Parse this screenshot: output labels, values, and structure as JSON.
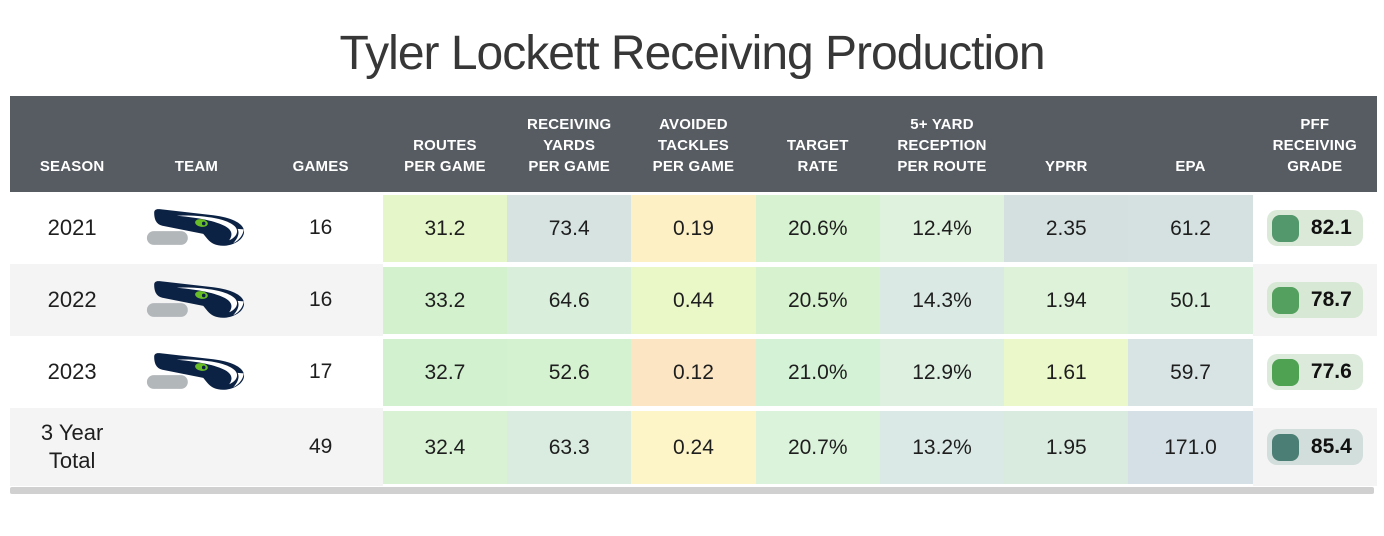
{
  "title": "Tyler Lockett Receiving Production",
  "colors": {
    "header_bg": "#575c63",
    "header_text": "#ffffff",
    "row_bg": "#ffffff",
    "row_alt_bg": "#f4f4f4",
    "scrollbar": "#d0d0d0",
    "logo_navy": "#0c2244",
    "logo_gray": "#b2b7ba",
    "logo_green": "#69be28"
  },
  "table": {
    "columns": [
      {
        "key": "season",
        "label": "SEASON"
      },
      {
        "key": "team",
        "label": "TEAM"
      },
      {
        "key": "games",
        "label": "GAMES"
      },
      {
        "key": "routes-per-game",
        "label": "ROUTES\nPER GAME"
      },
      {
        "key": "receiving-yards-per-game",
        "label": "RECEIVING\nYARDS\nPER GAME"
      },
      {
        "key": "avoided-tackles-per-game",
        "label": "AVOIDED\nTACKLES\nPER GAME"
      },
      {
        "key": "target-rate",
        "label": "TARGET\nRATE"
      },
      {
        "key": "5-yard-reception-per-route",
        "label": "5+ YARD\nRECEPTION\nPER ROUTE"
      },
      {
        "key": "yprr",
        "label": "YPRR"
      },
      {
        "key": "epa",
        "label": "EPA"
      },
      {
        "key": "pff-receiving-grade",
        "label": "PFF\nRECEIVING\nGRADE"
      }
    ],
    "rows": [
      {
        "season": "2021",
        "logo": "seahawks-logo",
        "games": "16",
        "zebra": "#ffffff",
        "stats": [
          {
            "value": "31.2",
            "bg": "#e5f6c8"
          },
          {
            "value": "73.4",
            "bg": "#d6e3e1"
          },
          {
            "value": "0.19",
            "bg": "#fcf0c4"
          },
          {
            "value": "20.6%",
            "bg": "#d7f2d1"
          },
          {
            "value": "12.4%",
            "bg": "#def2dd"
          },
          {
            "value": "2.35",
            "bg": "#d4e0e0"
          },
          {
            "value": "61.2",
            "bg": "#d5e1e1"
          }
        ],
        "grade": {
          "value": "82.1",
          "square": "#53976c",
          "pill": "#dbead8"
        }
      },
      {
        "season": "2022",
        "logo": "seahawks-logo",
        "games": "16",
        "zebra": "#f4f4f4",
        "stats": [
          {
            "value": "33.2",
            "bg": "#d3f1cd"
          },
          {
            "value": "64.6",
            "bg": "#d9eedb"
          },
          {
            "value": "0.44",
            "bg": "#eaf7c6"
          },
          {
            "value": "20.5%",
            "bg": "#d7f2cf"
          },
          {
            "value": "14.3%",
            "bg": "#dae9e3"
          },
          {
            "value": "1.94",
            "bg": "#def2da"
          },
          {
            "value": "50.1",
            "bg": "#dbf0dc"
          }
        ],
        "grade": {
          "value": "78.7",
          "square": "#54a05e",
          "pill": "#d7e8d4"
        }
      },
      {
        "season": "2023",
        "logo": "seahawks-logo",
        "games": "17",
        "zebra": "#ffffff",
        "stats": [
          {
            "value": "32.7",
            "bg": "#d1f1cf"
          },
          {
            "value": "52.6",
            "bg": "#d4f2d0"
          },
          {
            "value": "0.12",
            "bg": "#fbe5c3"
          },
          {
            "value": "21.0%",
            "bg": "#d4f2d5"
          },
          {
            "value": "12.9%",
            "bg": "#def0e0"
          },
          {
            "value": "1.61",
            "bg": "#eaf8ca"
          },
          {
            "value": "59.7",
            "bg": "#d7e4e3"
          }
        ],
        "grade": {
          "value": "77.6",
          "square": "#4ea251",
          "pill": "#dbeada"
        }
      },
      {
        "season": "3 Year\nTotal",
        "logo": "",
        "games": "49",
        "zebra": "#f4f4f4",
        "stats": [
          {
            "value": "32.4",
            "bg": "#d8f2d3"
          },
          {
            "value": "63.3",
            "bg": "#d9ecdf"
          },
          {
            "value": "0.24",
            "bg": "#fdf5c8"
          },
          {
            "value": "20.7%",
            "bg": "#dbf2db"
          },
          {
            "value": "13.2%",
            "bg": "#dae9e5"
          },
          {
            "value": "1.95",
            "bg": "#d9ebdf"
          },
          {
            "value": "171.0",
            "bg": "#d4e0e5"
          }
        ],
        "grade": {
          "value": "85.4",
          "square": "#4b7e74",
          "pill": "#d2dedb"
        }
      }
    ]
  }
}
